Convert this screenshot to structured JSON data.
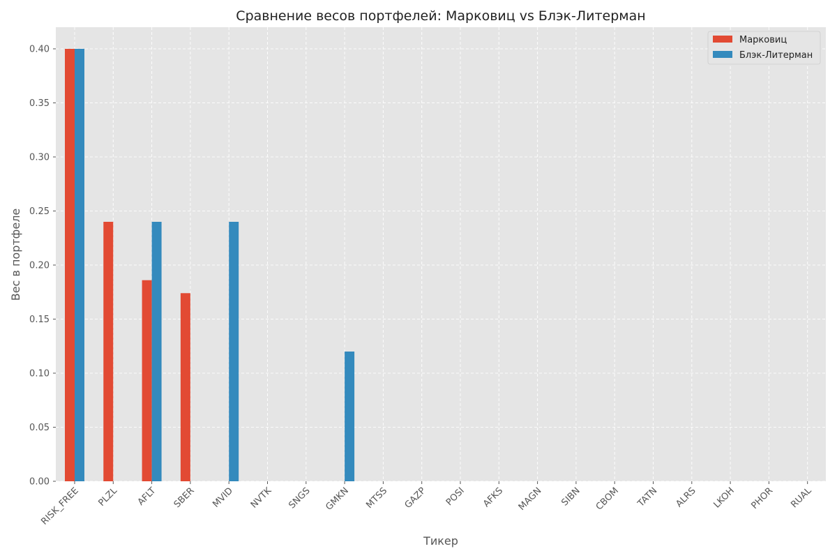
{
  "chart_data": {
    "type": "bar",
    "title": "Сравнение весов портфелей: Марковиц vs Блэк-Литерман",
    "xlabel": "Тикер",
    "ylabel": "Вес в портфеле",
    "ylim": [
      0,
      0.42
    ],
    "yticks": [
      "0.00",
      "0.05",
      "0.10",
      "0.15",
      "0.20",
      "0.25",
      "0.30",
      "0.35",
      "0.40"
    ],
    "grid": true,
    "legend_position": "top-right",
    "categories": [
      "RISK_FREE",
      "PLZL",
      "AFLT",
      "SBER",
      "MVID",
      "NVTK",
      "SNGS",
      "GMKN",
      "MTSS",
      "GAZP",
      "POSI",
      "AFKS",
      "MAGN",
      "SIBN",
      "CBOM",
      "TATN",
      "ALRS",
      "LKOH",
      "PHOR",
      "RUAL"
    ],
    "series": [
      {
        "name": "Марковиц",
        "color": "#e24a33",
        "values": [
          0.4,
          0.24,
          0.186,
          0.174,
          0,
          0,
          0,
          0,
          0,
          0,
          0,
          0,
          0,
          0,
          0,
          0,
          0,
          0,
          0,
          0
        ]
      },
      {
        "name": "Блэк-Литерман",
        "color": "#348abd",
        "values": [
          0.4,
          0,
          0.24,
          0,
          0.24,
          0,
          0,
          0.12,
          0,
          0,
          0,
          0,
          0,
          0,
          0,
          0,
          0,
          0,
          0,
          0
        ]
      }
    ],
    "background_color": "#e5e5e5"
  }
}
